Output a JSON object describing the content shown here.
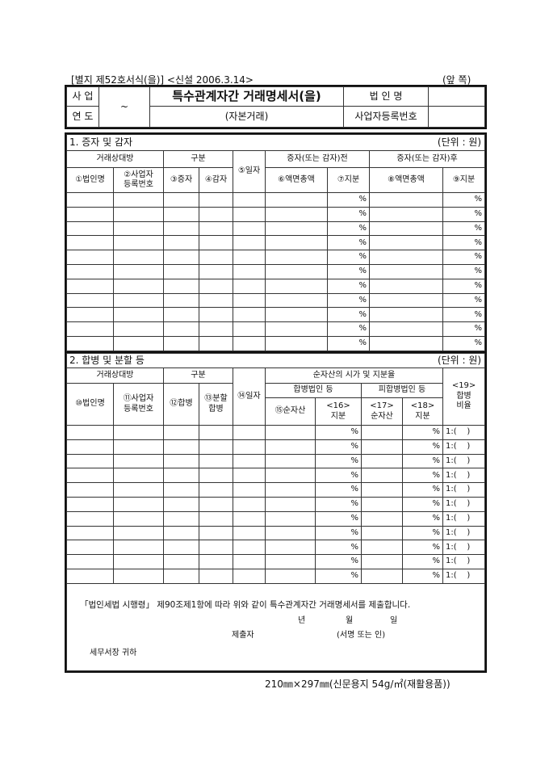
{
  "form_label": "[별지 제52호서식(을)] <신설 2006.3.14>",
  "page_side": "(앞 쪽)",
  "header": {
    "year_label_1": "사 업",
    "year_label_2": "연 도",
    "year_sep": "~",
    "title": "특수관계자간 거래명세서(을)",
    "subtitle": "(자본거래)",
    "corp_name_label": "법 인 명",
    "biz_reg_label": "사업자등록번호"
  },
  "section1": {
    "title": "1. 증자 및 감자",
    "unit": "(단위 : 원)",
    "group_counterparty": "거래상대방",
    "group_type": "구분",
    "col_date": "⑤일자",
    "group_before": "증자(또는 감자)전",
    "group_after": "증자(또는 감자)후",
    "col1": "①법인명",
    "col2a": "②사업자",
    "col2b": "등록번호",
    "col3": "③증자",
    "col4": "④감자",
    "col6": "⑥액면총액",
    "col7": "⑦지분",
    "col8": "⑧액면총액",
    "col9": "⑨지분",
    "pct": "%",
    "row_count": 11
  },
  "section2": {
    "title": "2. 합병 및 분할 등",
    "unit": "(단위 : 원)",
    "group_counterparty": "거래상대방",
    "group_type": "구분",
    "col_date": "⑭일자",
    "group_net": "순자산의 시가 및 지분율",
    "group_merging": "합병법인 등",
    "group_merged": "피합병법인 등",
    "col19a": "<19>",
    "col19b": "합병",
    "col19c": "비율",
    "col10": "⑩법인명",
    "col11a": "⑪사업자",
    "col11b": "등록번호",
    "col12": "⑫합병",
    "col13a": "⑬분할",
    "col13b": "합병",
    "col15": "⑮순자산",
    "col16a": "<16>",
    "col16b": "지분",
    "col17a": "<17>",
    "col17b": "순자산",
    "col18a": "<18>",
    "col18b": "지분",
    "pct": "%",
    "ratio": "1:(    )",
    "row_count": 11
  },
  "footer": {
    "statement": "「법인세법 시행령」 제90조제1항에 따라 위와 같이 특수관계자간 거래명세서를 제출합니다.",
    "year": "년",
    "month": "월",
    "day": "일",
    "submitter": "제출자",
    "sign": "(서명 또는 인)",
    "addressee": "세무서장 귀하"
  },
  "paper_spec": "210㎜×297㎜(신문용지 54g/㎡(재활용품))"
}
